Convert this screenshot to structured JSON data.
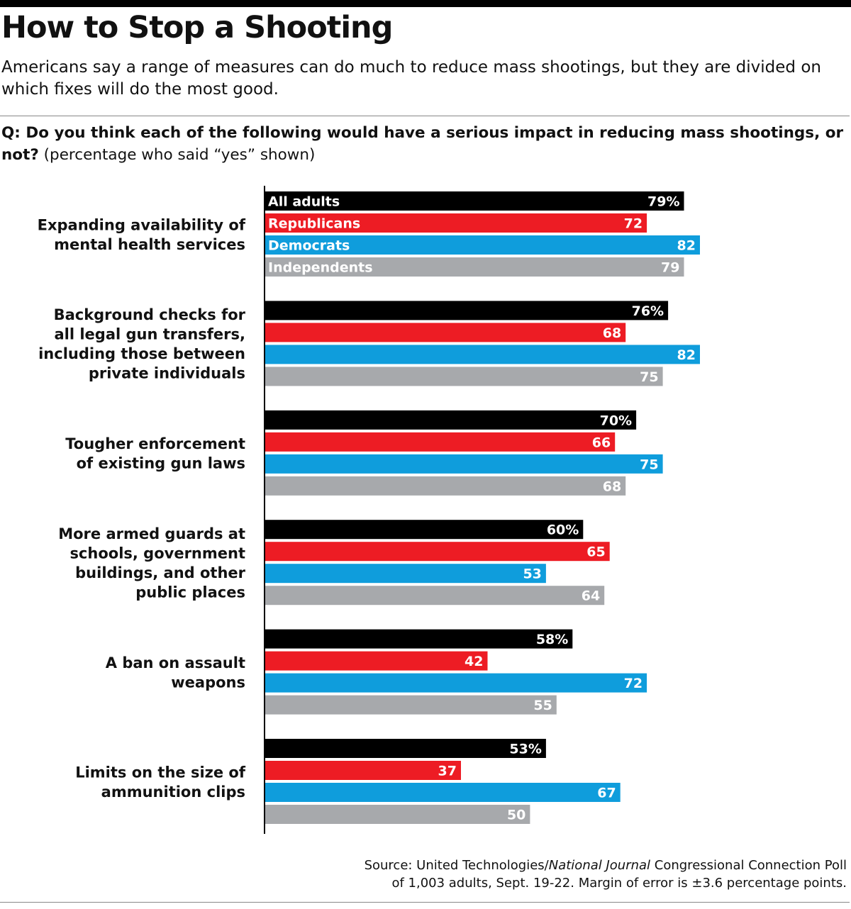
{
  "title": "How to Stop a Shooting",
  "subtitle": "Americans say a range of measures can do much to reduce mass shootings, but they are divided on which fixes will do the most good.",
  "question": {
    "prefix": "Q:  Do you think each of the following would have a serious impact in reducing mass shootings, or not?",
    "note": "(percentage who said “yes” shown)"
  },
  "source": {
    "line1_a": "Source: United Technologies/",
    "line1_em": "National Journal",
    "line1_b": " Congressional Connection Poll",
    "line2": "of 1,003 adults, Sept. 19-22. Margin of error is ±3.6 percentage points."
  },
  "chart_data": {
    "type": "bar",
    "orientation": "horizontal",
    "unit_suffix_first_group_label": "%",
    "categories": [
      [
        "Expanding availability of",
        "mental health services"
      ],
      [
        "Background checks for",
        "all legal gun transfers,",
        "including those between",
        "private individuals"
      ],
      [
        "Tougher enforcement",
        "of existing gun laws"
      ],
      [
        "More armed guards at",
        "schools, government",
        "buildings, and other",
        "public places"
      ],
      [
        "A ban on assault",
        "weapons"
      ],
      [
        "Limits on the size of",
        "ammunition clips"
      ]
    ],
    "series": [
      {
        "name": "All adults",
        "color": "#000000",
        "values": [
          79,
          76,
          70,
          60,
          58,
          53
        ]
      },
      {
        "name": "Republicans",
        "color": "#ed1c24",
        "values": [
          72,
          68,
          66,
          65,
          42,
          37
        ]
      },
      {
        "name": "Democrats",
        "color": "#0f9ddc",
        "values": [
          82,
          82,
          75,
          53,
          72,
          67
        ]
      },
      {
        "name": "Independents",
        "color": "#a7a9ac",
        "values": [
          79,
          75,
          68,
          64,
          55,
          50
        ]
      }
    ],
    "xlim": [
      0,
      82
    ],
    "legend": "inside first group of bars",
    "grid": false
  }
}
